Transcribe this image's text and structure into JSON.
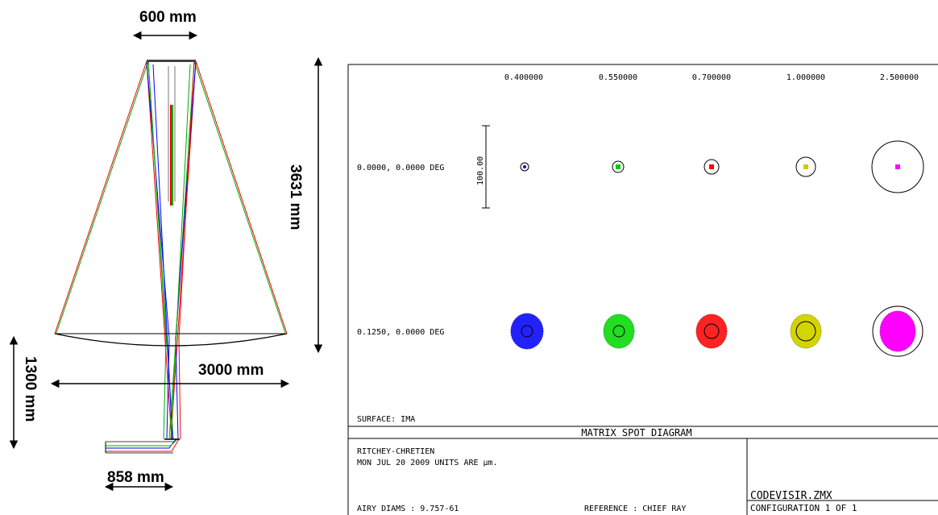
{
  "layout_diagram": {
    "dim_top": "600 mm",
    "dim_height": "3631 mm",
    "dim_width": "3000 mm",
    "dim_lower_height": "1300 mm",
    "dim_bottom": "858 mm"
  },
  "spot_diagram": {
    "wavelengths": [
      "0.400000",
      "0.550000",
      "0.700000",
      "1.000000",
      "2.500000"
    ],
    "fields": [
      "0.0000, 0.0000 DEG",
      "0.1250, 0.0000 DEG"
    ],
    "scale_bar": "100.00",
    "surface": "SURFACE: IMA",
    "title": "MATRIX SPOT DIAGRAM",
    "lens_name": "RITCHEY-CHRETIEN",
    "date_units": "MON JUL 20 2009  UNITS ARE µm.",
    "airy": "AIRY DIAMS : 9.757-61",
    "reference": "REFERENCE  : CHIEF RAY",
    "file": "CODEVISIR.ZMX",
    "config": "CONFIGURATION 1 OF 1",
    "colors": [
      "#0000ff",
      "#00cc00",
      "#ff0000",
      "#cccc00",
      "#ff00ff"
    ],
    "airy_circle_relative": [
      1,
      1,
      1,
      1,
      4
    ],
    "spot_relative_size_field2": [
      1.0,
      0.95,
      0.95,
      0.95,
      1.0
    ]
  }
}
